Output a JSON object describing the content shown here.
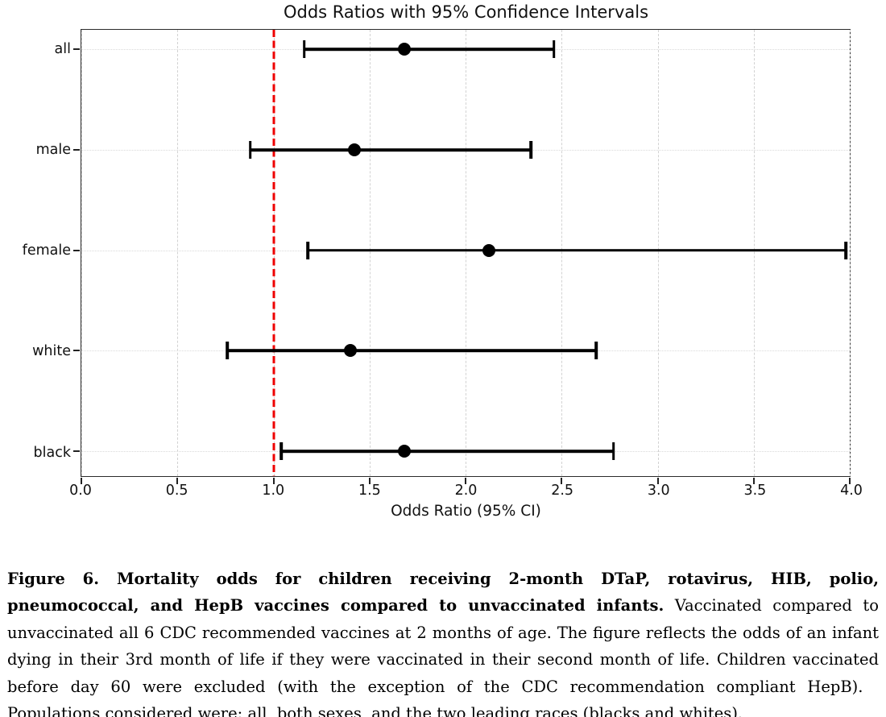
{
  "chart_data": {
    "type": "scatter",
    "subtype": "forest-plot-errorbar",
    "title": "Odds Ratios with 95% Confidence Intervals",
    "xlabel": "Odds Ratio (95% CI)",
    "ylabel": "",
    "categories": [
      "all",
      "male",
      "female",
      "white",
      "black"
    ],
    "series": [
      {
        "name": "Odds Ratio (95% CI)",
        "values": [
          1.68,
          1.42,
          2.12,
          1.4,
          1.68
        ],
        "ci_low": [
          1.16,
          0.88,
          1.18,
          0.76,
          1.04
        ],
        "ci_high": [
          2.46,
          2.34,
          3.98,
          2.68,
          2.77
        ]
      }
    ],
    "xlim": [
      0.0,
      4.0
    ],
    "xticks": [
      0.0,
      0.5,
      1.0,
      1.5,
      2.0,
      2.5,
      3.0,
      3.5,
      4.0
    ],
    "grid": true,
    "reference_line": {
      "x": 1.0,
      "color": "#ee0000",
      "style": "dashed"
    },
    "marker_color": "#000000",
    "bar_color": "#000000",
    "legend": "none"
  },
  "caption": {
    "bold": "Figure 6. Mortality odds for children receiving 2-month DTaP, rotavirus, HIB, polio, pneumococcal, and HepB vaccines compared to unvaccinated infants.",
    "rest": " Vaccinated compared to unvaccinated all 6 CDC recommended vaccines at 2 months of age. The figure reflects the odds of an infant dying in their 3rd month of life if they were vaccinated in their second month of life. Children vaccinated before day 60 were excluded (with the exception of the CDC recommendation compliant HepB).  Populations considered were: all, both sexes, and the two leading races (blacks and whites)."
  }
}
